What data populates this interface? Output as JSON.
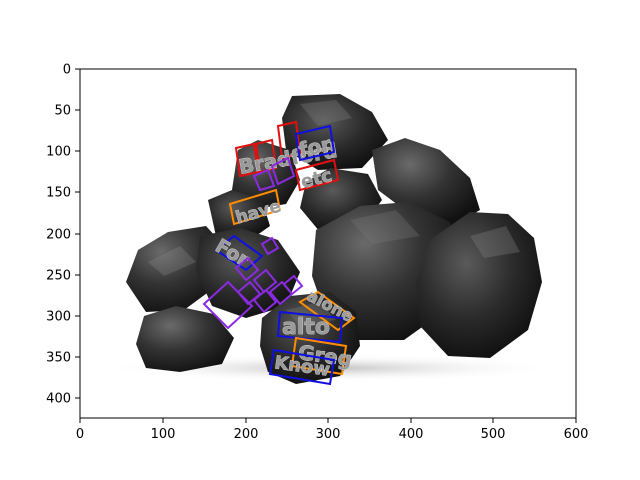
{
  "figure": {
    "x_ticks": [
      "0",
      "100",
      "200",
      "300",
      "400",
      "500",
      "600"
    ],
    "y_ticks": [
      "0",
      "50",
      "100",
      "150",
      "200",
      "250",
      "300",
      "350",
      "400"
    ]
  },
  "detections": {
    "box_colors": {
      "red": "#e01010",
      "blue": "#1010e0",
      "purple": "#8a2be2",
      "orange": "#ff8c00"
    },
    "words": [
      {
        "text": "Bradford",
        "color": "red"
      },
      {
        "text": "for",
        "color": "blue"
      },
      {
        "text": "etc",
        "color": "red"
      },
      {
        "text": "have",
        "color": "orange"
      },
      {
        "text": "For",
        "color": "blue"
      },
      {
        "text": "alone",
        "color": "orange"
      },
      {
        "text": "alto",
        "color": "blue"
      },
      {
        "text": "Greg",
        "color": "orange"
      },
      {
        "text": "Know",
        "color": "blue"
      }
    ],
    "unreadable_boxes_color": "purple"
  }
}
